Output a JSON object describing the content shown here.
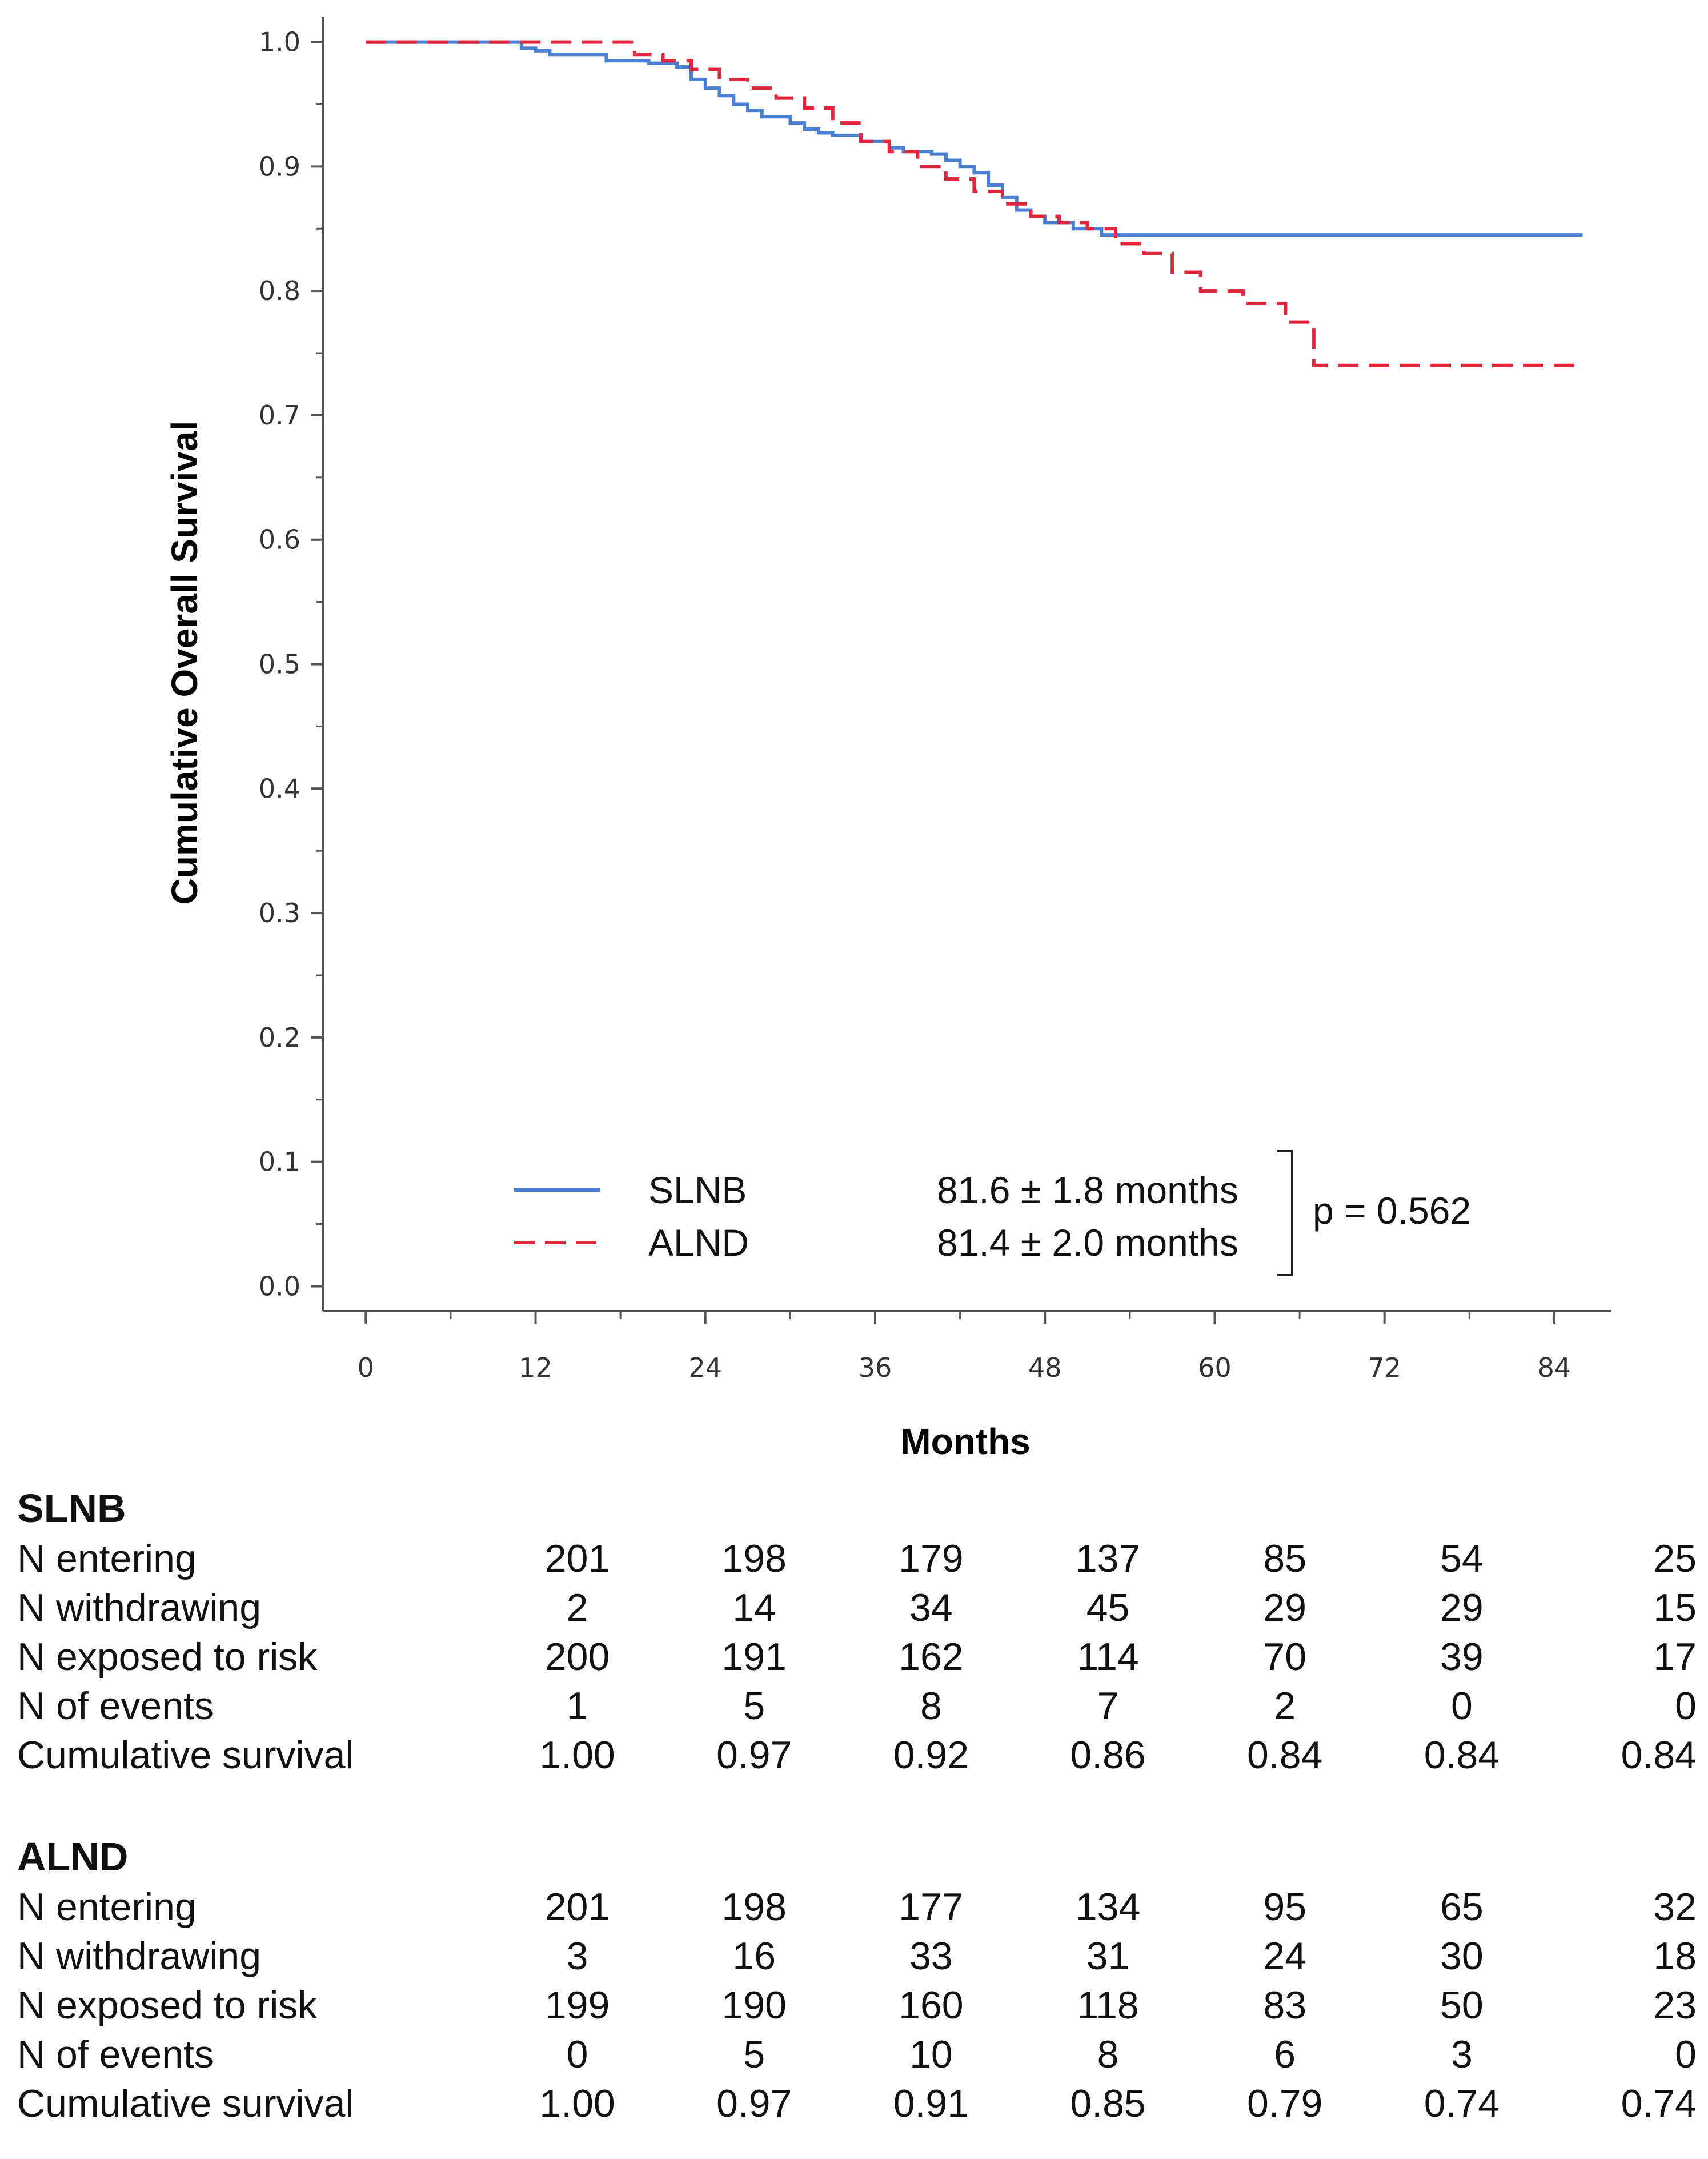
{
  "chart_data": {
    "type": "line",
    "subtype": "kaplan-meier step curve",
    "xlabel": "Months",
    "ylabel": "Cumulative Overall Survival",
    "xlim": [
      -3,
      88
    ],
    "ylim": [
      -0.02,
      1.02
    ],
    "xticks": [
      0,
      12,
      24,
      36,
      48,
      60,
      72,
      84
    ],
    "xtick_labels": [
      "0",
      "12",
      "24",
      "36",
      "48",
      "60",
      "72",
      "84"
    ],
    "yticks": [
      0.0,
      0.1,
      0.2,
      0.3,
      0.4,
      0.5,
      0.6,
      0.7,
      0.8,
      0.9,
      1.0
    ],
    "ytick_labels": [
      "0.0",
      "0.1",
      "0.2",
      "0.3",
      "0.4",
      "0.5",
      "0.6",
      "0.7",
      "0.8",
      "0.9",
      "1.0"
    ],
    "series": [
      {
        "name": "SLNB",
        "color": "#4a7fd4",
        "dash": "solid",
        "summary": "81.6 ± 1.8 months",
        "x": [
          0,
          10,
          11,
          12,
          13,
          17,
          20,
          22,
          23,
          24,
          25,
          26,
          27,
          28,
          30,
          31,
          32,
          33,
          35,
          37,
          38,
          40,
          41,
          42,
          43,
          44,
          45,
          46,
          47,
          48,
          50,
          52,
          54,
          86
        ],
        "y": [
          1.0,
          1.0,
          0.995,
          0.993,
          0.99,
          0.985,
          0.983,
          0.98,
          0.97,
          0.963,
          0.957,
          0.95,
          0.945,
          0.94,
          0.935,
          0.93,
          0.927,
          0.925,
          0.92,
          0.915,
          0.912,
          0.91,
          0.905,
          0.9,
          0.895,
          0.885,
          0.875,
          0.865,
          0.86,
          0.855,
          0.85,
          0.845,
          0.845,
          0.845
        ]
      },
      {
        "name": "ALND",
        "color": "#e0253c",
        "dash": "dashed",
        "summary": "81.4 ± 2.0 months",
        "x": [
          0,
          10,
          19,
          21,
          23,
          25,
          27,
          29,
          31,
          33,
          35,
          37,
          39,
          41,
          43,
          45,
          47,
          49,
          51,
          53,
          55,
          57,
          59,
          62,
          65,
          67,
          86
        ],
        "y": [
          1.0,
          1.0,
          0.99,
          0.985,
          0.978,
          0.97,
          0.963,
          0.955,
          0.947,
          0.935,
          0.92,
          0.912,
          0.9,
          0.89,
          0.88,
          0.87,
          0.86,
          0.855,
          0.85,
          0.838,
          0.83,
          0.815,
          0.8,
          0.79,
          0.775,
          0.74,
          0.74
        ]
      }
    ],
    "legend": {
      "placement": "bottom-center",
      "p_value_label": "p = 0.562"
    }
  },
  "risk_table": {
    "groups": [
      {
        "title": "SLNB",
        "rows": [
          {
            "label": "N entering",
            "values": [
              "201",
              "198",
              "179",
              "137",
              "85",
              "54",
              "25"
            ]
          },
          {
            "label": "N withdrawing",
            "values": [
              "2",
              "14",
              "34",
              "45",
              "29",
              "29",
              "15"
            ]
          },
          {
            "label": "N exposed to risk",
            "values": [
              "200",
              "191",
              "162",
              "114",
              "70",
              "39",
              "17"
            ]
          },
          {
            "label": "N of events",
            "values": [
              "1",
              "5",
              "8",
              "7",
              "2",
              "0",
              "0"
            ]
          },
          {
            "label": "Cumulative survival",
            "values": [
              "1.00",
              "0.97",
              "0.92",
              "0.86",
              "0.84",
              "0.84",
              "0.84"
            ]
          }
        ]
      },
      {
        "title": "ALND",
        "rows": [
          {
            "label": "N entering",
            "values": [
              "201",
              "198",
              "177",
              "134",
              "95",
              "65",
              "32"
            ]
          },
          {
            "label": "N withdrawing",
            "values": [
              "3",
              "16",
              "33",
              "31",
              "24",
              "30",
              "18"
            ]
          },
          {
            "label": "N exposed to risk",
            "values": [
              "199",
              "190",
              "160",
              "118",
              "83",
              "50",
              "23"
            ]
          },
          {
            "label": "N of events",
            "values": [
              "0",
              "5",
              "10",
              "8",
              "6",
              "3",
              "0"
            ]
          },
          {
            "label": "Cumulative survival",
            "values": [
              "1.00",
              "0.97",
              "0.91",
              "0.85",
              "0.79",
              "0.74",
              "0.74"
            ]
          }
        ]
      }
    ]
  }
}
